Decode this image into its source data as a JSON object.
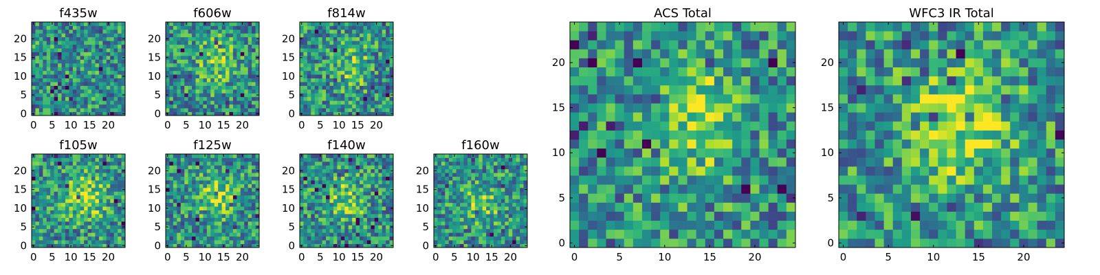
{
  "figure": {
    "colormap": "viridis",
    "background": "#ffffff",
    "panel_count": 9
  },
  "chart_data": [
    {
      "type": "heatmap",
      "title": "f435w",
      "size": 25,
      "seed": 101,
      "blob": null,
      "xticks": [
        0,
        5,
        10,
        15,
        20
      ],
      "yticks": [
        0,
        5,
        10,
        15,
        20
      ]
    },
    {
      "type": "heatmap",
      "title": "f606w",
      "size": 25,
      "seed": 202,
      "blob": {
        "cx": 13,
        "cy": 14,
        "sx": 3.5,
        "sy": 4.5,
        "amp": 0.25
      },
      "xticks": [
        0,
        5,
        10,
        15,
        20
      ],
      "yticks": [
        0,
        5,
        10,
        15,
        20
      ]
    },
    {
      "type": "heatmap",
      "title": "f814w",
      "size": 25,
      "seed": 303,
      "blob": {
        "cx": 14,
        "cy": 13,
        "sx": 2.5,
        "sy": 4.5,
        "amp": 0.3
      },
      "xticks": [
        0,
        5,
        10,
        15,
        20
      ],
      "yticks": [
        0,
        5,
        10,
        15,
        20
      ]
    },
    {
      "type": "heatmap",
      "title": "f105w",
      "size": 25,
      "seed": 404,
      "blob": {
        "cx": 14,
        "cy": 13,
        "sx": 4,
        "sy": 4,
        "amp": 0.35
      },
      "xticks": [
        0,
        5,
        10,
        15,
        20
      ],
      "yticks": [
        0,
        5,
        10,
        15,
        20
      ]
    },
    {
      "type": "heatmap",
      "title": "f125w",
      "size": 25,
      "seed": 505,
      "blob": {
        "cx": 13,
        "cy": 13,
        "sx": 4,
        "sy": 3.5,
        "amp": 0.3
      },
      "xticks": [
        0,
        5,
        10,
        15,
        20
      ],
      "yticks": [
        0,
        5,
        10,
        15,
        20
      ]
    },
    {
      "type": "heatmap",
      "title": "f140w",
      "size": 25,
      "seed": 606,
      "blob": {
        "cx": 12,
        "cy": 12,
        "sx": 3.5,
        "sy": 4,
        "amp": 0.3
      },
      "xticks": [
        0,
        5,
        10,
        15,
        20
      ],
      "yticks": [
        0,
        5,
        10,
        15,
        20
      ]
    },
    {
      "type": "heatmap",
      "title": "f160w",
      "size": 25,
      "seed": 707,
      "blob": {
        "cx": 12,
        "cy": 11,
        "sx": 3.5,
        "sy": 3,
        "amp": 0.3
      },
      "xticks": [
        0,
        5,
        10,
        15,
        20
      ],
      "yticks": [
        0,
        5,
        10,
        15,
        20
      ]
    },
    {
      "type": "heatmap",
      "title": "ACS Total",
      "size": 25,
      "seed": 808,
      "blob": {
        "cx": 14,
        "cy": 14,
        "sx": 3,
        "sy": 4.5,
        "amp": 0.35
      },
      "xticks": [
        0,
        5,
        10,
        15,
        20
      ],
      "yticks": [
        0,
        5,
        10,
        15,
        20
      ]
    },
    {
      "type": "heatmap",
      "title": "WFC3 IR Total",
      "size": 25,
      "seed": 909,
      "blob": {
        "cx": 13,
        "cy": 13,
        "sx": 4.5,
        "sy": 4.5,
        "amp": 0.35
      },
      "xticks": [
        0,
        5,
        10,
        15,
        20
      ],
      "yticks": [
        0,
        5,
        10,
        15,
        20
      ]
    }
  ]
}
